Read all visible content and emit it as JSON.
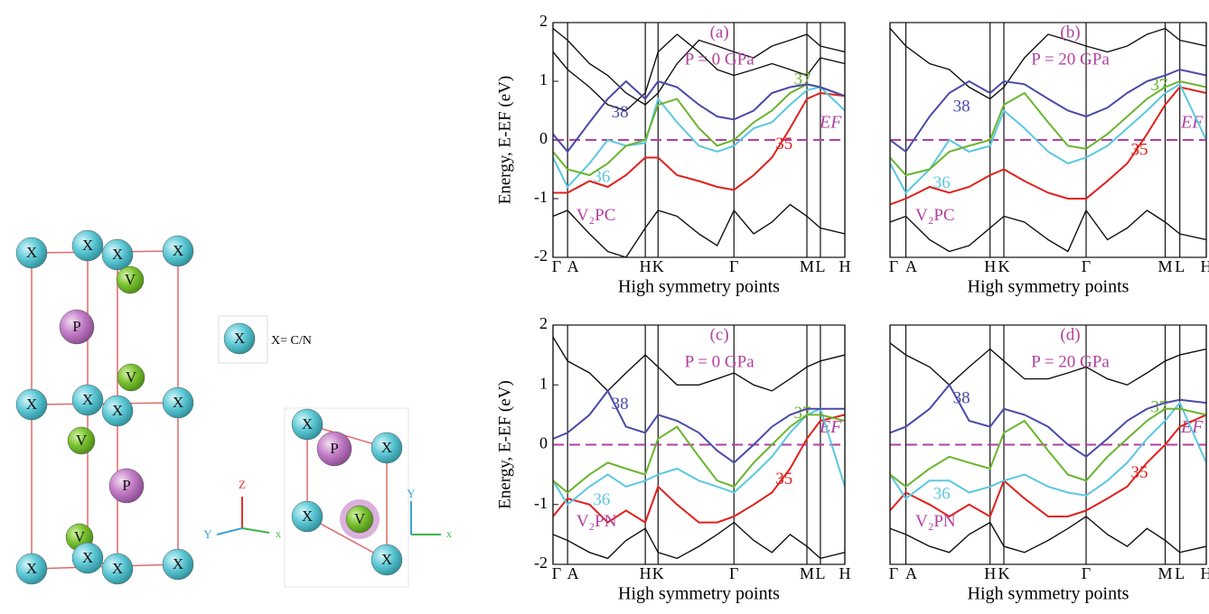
{
  "structure": {
    "side_view": [
      "X",
      "X",
      "X",
      "X",
      "V",
      "P",
      "V",
      "X",
      "X",
      "X",
      "X",
      "V",
      "P",
      "V",
      "X",
      "X",
      "X",
      "X"
    ],
    "top_view": [
      "X",
      "P",
      "X",
      "X",
      "V",
      "X"
    ],
    "legend_atom": "X",
    "legend_text": "X= C/N",
    "axes_side": {
      "z": "Z",
      "y": "Y",
      "x": "x"
    },
    "axes_top": {
      "y": "Y",
      "x": "x"
    }
  },
  "chart_data": [
    {
      "type": "line",
      "title": "(a)",
      "subtitle": "P = 0 GPa",
      "compound": "V₂PC",
      "fermi_label": "EF",
      "fermi_level": 0,
      "ylabel": "Energy, E-EF (eV)",
      "xlabel": "High symmetry points",
      "x": [
        0,
        0.4,
        1,
        1.5,
        2,
        2.53,
        2.88,
        3.4,
        4,
        4.5,
        4.96,
        5.5,
        6,
        6.5,
        6.96,
        7.33,
        8
      ],
      "xlim": [
        0,
        8
      ],
      "xticks": [
        {
          "value": 0,
          "label": "Γ"
        },
        {
          "value": 0.4,
          "label": "A"
        },
        {
          "value": 2.53,
          "label": "H"
        },
        {
          "value": 2.88,
          "label": "K"
        },
        {
          "value": 4.96,
          "label": "Γ"
        },
        {
          "value": 6.96,
          "label": "M"
        },
        {
          "value": 7.33,
          "label": "L"
        },
        {
          "value": 8,
          "label": "H"
        }
      ],
      "ylim": [
        -2,
        2
      ],
      "yticks": [
        -2,
        -1,
        0,
        1,
        2
      ],
      "series": [
        {
          "name": "35",
          "color": "#e0201b",
          "values": [
            -0.9,
            -0.9,
            -0.7,
            -0.8,
            -0.6,
            -0.3,
            -0.3,
            -0.6,
            -0.7,
            -0.8,
            -0.85,
            -0.6,
            -0.3,
            0.2,
            0.7,
            0.8,
            0.75
          ]
        },
        {
          "name": "36",
          "color": "#5bc8e0",
          "values": [
            -0.3,
            -0.8,
            -0.4,
            0.0,
            -0.1,
            -0.05,
            0.7,
            0.3,
            -0.1,
            -0.2,
            -0.1,
            0.2,
            0.3,
            0.6,
            0.85,
            0.9,
            0.5
          ]
        },
        {
          "name": "37",
          "color": "#6ab52e",
          "values": [
            -0.2,
            -0.5,
            -0.6,
            -0.4,
            -0.1,
            0.0,
            0.6,
            0.7,
            0.2,
            -0.1,
            0.0,
            0.3,
            0.5,
            0.8,
            0.95,
            0.9,
            0.75
          ]
        },
        {
          "name": "38",
          "color": "#4a4aa8",
          "values": [
            0.1,
            -0.2,
            0.3,
            0.7,
            1.0,
            0.7,
            1.0,
            0.9,
            0.6,
            0.4,
            0.35,
            0.5,
            0.8,
            0.9,
            0.95,
            0.9,
            0.75
          ]
        },
        {
          "color": "#111111",
          "values": [
            1.9,
            1.7,
            1.3,
            1.1,
            0.8,
            0.6,
            0.8,
            1.3,
            1.7,
            1.6,
            1.5,
            1.4,
            1.6,
            1.7,
            1.8,
            1.6,
            1.5
          ]
        },
        {
          "color": "#111111",
          "values": [
            1.5,
            1.2,
            0.9,
            0.6,
            0.5,
            0.8,
            1.5,
            1.8,
            1.5,
            1.2,
            1.1,
            1.2,
            1.3,
            1.2,
            1.1,
            1.4,
            1.3
          ]
        },
        {
          "color": "#111111",
          "values": [
            -1.3,
            -1.2,
            -1.6,
            -1.9,
            -2.0,
            -1.5,
            -1.2,
            -1.3,
            -1.6,
            -1.8,
            -1.2,
            -1.6,
            -1.4,
            -1.1,
            -1.3,
            -1.5,
            -1.6
          ]
        }
      ]
    },
    {
      "type": "line",
      "title": "(b)",
      "subtitle": "P = 20 GPa",
      "compound": "V₂PC",
      "fermi_label": "EF",
      "fermi_level": 0,
      "xlabel": "High symmetry points",
      "x": [
        0,
        0.4,
        1,
        1.5,
        2,
        2.53,
        2.88,
        3.4,
        4,
        4.5,
        4.96,
        5.5,
        6,
        6.5,
        6.96,
        7.33,
        8
      ],
      "xlim": [
        0,
        8
      ],
      "xticks": [
        {
          "value": 0,
          "label": "Γ"
        },
        {
          "value": 0.4,
          "label": "A"
        },
        {
          "value": 2.53,
          "label": "H"
        },
        {
          "value": 2.88,
          "label": "K"
        },
        {
          "value": 4.96,
          "label": "Γ"
        },
        {
          "value": 6.96,
          "label": "M"
        },
        {
          "value": 7.33,
          "label": "L"
        },
        {
          "value": 8,
          "label": "H"
        }
      ],
      "ylim": [
        -2,
        2
      ],
      "series": [
        {
          "name": "35",
          "color": "#e0201b",
          "values": [
            -1.1,
            -1.0,
            -0.8,
            -0.9,
            -0.8,
            -0.6,
            -0.5,
            -0.7,
            -0.9,
            -1.0,
            -1.0,
            -0.7,
            -0.4,
            0.1,
            0.6,
            0.9,
            0.8
          ]
        },
        {
          "name": "36",
          "color": "#5bc8e0",
          "values": [
            -0.4,
            -0.9,
            -0.5,
            0.0,
            -0.2,
            -0.1,
            0.5,
            0.2,
            -0.2,
            -0.4,
            -0.3,
            -0.1,
            0.2,
            0.5,
            0.8,
            0.95,
            0.0
          ]
        },
        {
          "name": "37",
          "color": "#6ab52e",
          "values": [
            -0.3,
            -0.6,
            -0.5,
            -0.2,
            -0.1,
            0.0,
            0.6,
            0.8,
            0.3,
            -0.1,
            -0.15,
            0.1,
            0.4,
            0.7,
            0.9,
            1.0,
            0.9
          ]
        },
        {
          "name": "38",
          "color": "#4a4aa8",
          "values": [
            0.0,
            -0.2,
            0.4,
            0.8,
            1.0,
            0.8,
            1.0,
            0.95,
            0.7,
            0.5,
            0.4,
            0.55,
            0.8,
            1.0,
            1.1,
            1.2,
            1.1
          ]
        },
        {
          "color": "#111111",
          "values": [
            1.9,
            1.6,
            1.3,
            1.2,
            0.9,
            0.7,
            0.9,
            1.4,
            1.8,
            1.7,
            1.6,
            1.5,
            1.6,
            1.8,
            1.9,
            1.7,
            1.6
          ]
        },
        {
          "color": "#111111",
          "values": [
            -1.4,
            -1.3,
            -1.7,
            -1.9,
            -1.8,
            -1.5,
            -1.3,
            -1.4,
            -1.7,
            -1.9,
            -1.2,
            -1.7,
            -1.5,
            -1.2,
            -1.4,
            -1.6,
            -1.7
          ]
        }
      ]
    },
    {
      "type": "line",
      "title": "(c)",
      "subtitle": "P = 0 GPa",
      "compound": "V₂PN",
      "fermi_label": "EF",
      "fermi_level": 0,
      "ylabel": "Energy, E-EF (eV)",
      "xlabel": "High symmetry points",
      "x": [
        0,
        0.4,
        1,
        1.5,
        2,
        2.53,
        2.88,
        3.4,
        4,
        4.5,
        4.96,
        5.5,
        6,
        6.5,
        6.96,
        7.33,
        8
      ],
      "xlim": [
        0,
        8
      ],
      "xticks": [
        {
          "value": 0,
          "label": "Γ"
        },
        {
          "value": 0.4,
          "label": "A"
        },
        {
          "value": 2.53,
          "label": "H"
        },
        {
          "value": 2.88,
          "label": "K"
        },
        {
          "value": 4.96,
          "label": "Γ"
        },
        {
          "value": 6.96,
          "label": "M"
        },
        {
          "value": 7.33,
          "label": "L"
        },
        {
          "value": 8,
          "label": "H"
        }
      ],
      "ylim": [
        -2,
        2
      ],
      "yticks": [
        -2,
        -1,
        0,
        1,
        2
      ],
      "series": [
        {
          "name": "35",
          "color": "#e0201b",
          "values": [
            -1.2,
            -0.9,
            -1.0,
            -1.3,
            -1.1,
            -1.3,
            -0.7,
            -1.0,
            -1.3,
            -1.3,
            -1.2,
            -1.0,
            -0.8,
            -0.4,
            0.1,
            0.4,
            0.5
          ]
        },
        {
          "name": "36",
          "color": "#5bc8e0",
          "values": [
            -0.6,
            -1.0,
            -0.7,
            -0.5,
            -0.7,
            -0.6,
            -0.5,
            -0.4,
            -0.6,
            -0.7,
            -0.8,
            -0.5,
            -0.2,
            0.2,
            0.5,
            0.6,
            -0.7
          ]
        },
        {
          "name": "37",
          "color": "#6ab52e",
          "values": [
            -0.6,
            -0.8,
            -0.5,
            -0.3,
            -0.4,
            -0.5,
            0.1,
            0.3,
            -0.2,
            -0.6,
            -0.7,
            -0.3,
            0.0,
            0.3,
            0.5,
            0.5,
            0.4
          ]
        },
        {
          "name": "38",
          "color": "#4a4aa8",
          "values": [
            0.1,
            0.2,
            0.5,
            0.9,
            0.3,
            0.2,
            0.5,
            0.4,
            0.2,
            -0.1,
            -0.3,
            0.0,
            0.3,
            0.5,
            0.6,
            0.6,
            0.6
          ]
        },
        {
          "color": "#111111",
          "values": [
            1.8,
            1.4,
            1.2,
            0.9,
            1.2,
            1.5,
            1.3,
            1.0,
            1.0,
            1.1,
            1.2,
            1.0,
            0.9,
            1.1,
            1.3,
            1.4,
            1.5
          ]
        },
        {
          "color": "#111111",
          "values": [
            -1.5,
            -1.6,
            -1.8,
            -1.9,
            -1.6,
            -1.4,
            -1.8,
            -1.9,
            -1.7,
            -1.5,
            -1.3,
            -1.6,
            -1.8,
            -1.5,
            -1.7,
            -1.9,
            -1.8
          ]
        }
      ]
    },
    {
      "type": "line",
      "title": "(d)",
      "subtitle": "P = 20 GPa",
      "compound": "V₂PN",
      "fermi_label": "EF",
      "fermi_level": 0,
      "xlabel": "High symmetry points",
      "x": [
        0,
        0.4,
        1,
        1.5,
        2,
        2.53,
        2.88,
        3.4,
        4,
        4.5,
        4.96,
        5.5,
        6,
        6.5,
        6.96,
        7.33,
        8
      ],
      "xlim": [
        0,
        8
      ],
      "xticks": [
        {
          "value": 0,
          "label": "Γ"
        },
        {
          "value": 0.4,
          "label": "A"
        },
        {
          "value": 2.53,
          "label": "H"
        },
        {
          "value": 2.88,
          "label": "K"
        },
        {
          "value": 4.96,
          "label": "Γ"
        },
        {
          "value": 6.96,
          "label": "M"
        },
        {
          "value": 7.33,
          "label": "L"
        },
        {
          "value": 8,
          "label": "H"
        }
      ],
      "ylim": [
        -2,
        2
      ],
      "series": [
        {
          "name": "35",
          "color": "#e0201b",
          "values": [
            -1.1,
            -0.8,
            -1.0,
            -1.2,
            -1.0,
            -1.2,
            -0.6,
            -0.9,
            -1.2,
            -1.2,
            -1.1,
            -0.9,
            -0.7,
            -0.3,
            0.0,
            0.3,
            0.5
          ]
        },
        {
          "name": "36",
          "color": "#5bc8e0",
          "values": [
            -0.5,
            -0.9,
            -0.6,
            -0.6,
            -0.8,
            -0.7,
            -0.6,
            -0.5,
            -0.7,
            -0.8,
            -0.85,
            -0.6,
            -0.3,
            0.1,
            0.4,
            0.7,
            -0.3
          ]
        },
        {
          "name": "37",
          "color": "#6ab52e",
          "values": [
            -0.5,
            -0.7,
            -0.4,
            -0.2,
            -0.3,
            -0.4,
            0.2,
            0.4,
            -0.1,
            -0.5,
            -0.6,
            -0.2,
            0.1,
            0.4,
            0.6,
            0.6,
            0.5
          ]
        },
        {
          "name": "38",
          "color": "#4a4aa8",
          "values": [
            0.2,
            0.3,
            0.6,
            1.0,
            0.4,
            0.3,
            0.6,
            0.5,
            0.3,
            0.0,
            -0.2,
            0.1,
            0.4,
            0.6,
            0.7,
            0.75,
            0.7
          ]
        },
        {
          "color": "#111111",
          "values": [
            1.7,
            1.5,
            1.3,
            1.0,
            1.3,
            1.6,
            1.4,
            1.1,
            1.1,
            1.2,
            1.3,
            1.1,
            1.0,
            1.2,
            1.4,
            1.5,
            1.6
          ]
        },
        {
          "color": "#111111",
          "values": [
            -1.4,
            -1.5,
            -1.7,
            -1.8,
            -1.5,
            -1.3,
            -1.7,
            -1.8,
            -1.6,
            -1.4,
            -1.2,
            -1.5,
            -1.7,
            -1.4,
            -1.6,
            -1.8,
            -1.7
          ]
        }
      ]
    }
  ]
}
